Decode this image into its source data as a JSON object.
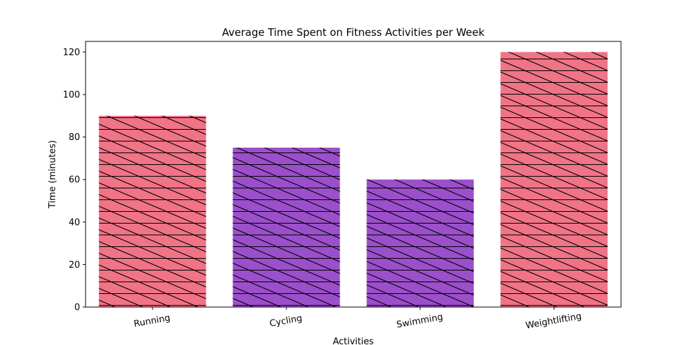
{
  "chart_data": {
    "type": "bar",
    "title": "Average Time Spent on Fitness Activities per Week",
    "xlabel": "Activities",
    "ylabel": "Time (minutes)",
    "categories": [
      "Running",
      "Cycling",
      "Swimming",
      "Weightlifting"
    ],
    "values": [
      90,
      75,
      60,
      120
    ],
    "bar_colors": [
      "#f07386",
      "#9b4fcb",
      "#9b4fcb",
      "#f07386"
    ],
    "hatch": "diagonal-and-horizontal",
    "ylim": [
      0,
      125
    ],
    "yticks": [
      0,
      20,
      40,
      60,
      80,
      100,
      120
    ],
    "xtick_rotation_deg": -10,
    "grid": false,
    "legend": "none"
  }
}
